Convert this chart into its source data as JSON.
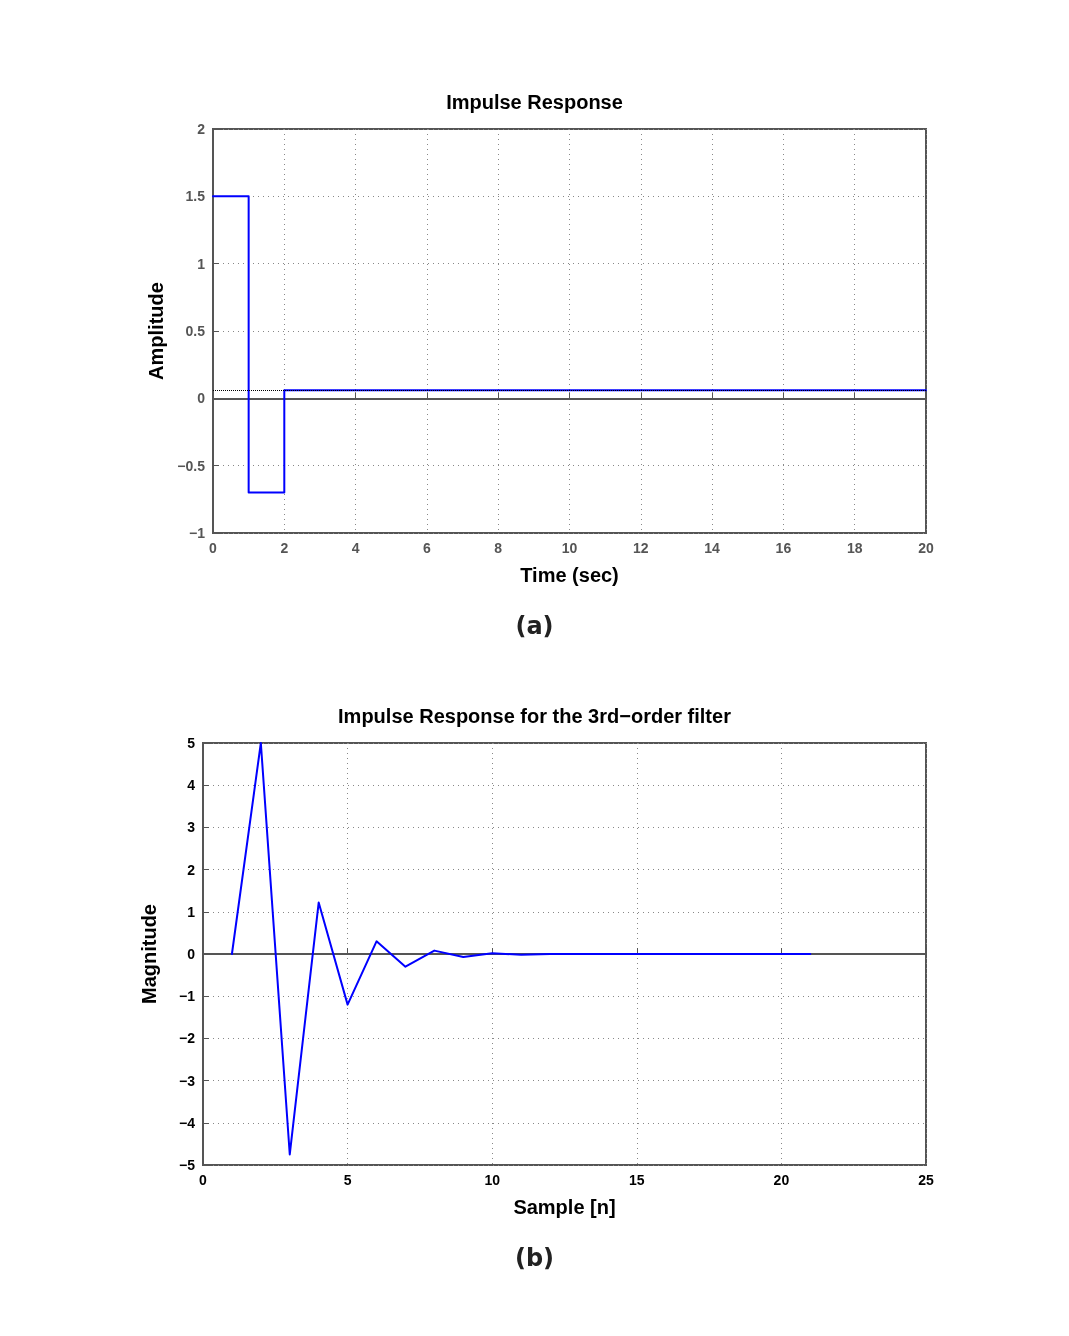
{
  "chart_data": [
    {
      "type": "step",
      "title": "Impulse Response",
      "xlabel": "Time (sec)",
      "ylabel": "Amplitude",
      "x": [
        0,
        1,
        2,
        20
      ],
      "series": [
        {
          "color": "#0000ff",
          "values": [
            1.5,
            -0.7,
            0.06,
            0.06
          ]
        }
      ],
      "xlim": [
        0,
        20
      ],
      "xticks": [
        0,
        2,
        4,
        6,
        8,
        10,
        12,
        14,
        16,
        18,
        20
      ],
      "ylim": [
        -1,
        2
      ],
      "yticks": [
        -1,
        -0.5,
        0,
        0.5,
        1,
        1.5,
        2
      ],
      "ref_lines": [
        {
          "axis": "y",
          "value": 0.06,
          "color": "#000000",
          "line_style": "dotted"
        }
      ],
      "grid": true,
      "marker": "none",
      "line_style": "solid",
      "annotations": [
        "(a)"
      ]
    },
    {
      "type": "line",
      "title": "Impulse Response for the 3rd−order filter",
      "xlabel": "Sample [n]",
      "ylabel": "Magnitude",
      "x": [
        1,
        2,
        3,
        4,
        5,
        6,
        7,
        8,
        9,
        10,
        11,
        12,
        13,
        14,
        15,
        16,
        17,
        18,
        19,
        20,
        21
      ],
      "series": [
        {
          "color": "#0000ff",
          "values": [
            0,
            5,
            -4.75,
            1.22,
            -1.2,
            0.3,
            -0.3,
            0.08,
            -0.07,
            0.02,
            -0.02,
            0,
            0,
            0,
            0,
            0,
            0,
            0,
            0,
            0,
            0
          ]
        }
      ],
      "xlim": [
        0,
        25
      ],
      "xticks": [
        0,
        5,
        10,
        15,
        20,
        25
      ],
      "ylim": [
        -5,
        5
      ],
      "yticks": [
        -5,
        -4,
        -3,
        -2,
        -1,
        0,
        1,
        2,
        3,
        4,
        5
      ],
      "grid": true,
      "marker": "none",
      "line_style": "solid",
      "annotations": [
        "(b)"
      ]
    }
  ]
}
